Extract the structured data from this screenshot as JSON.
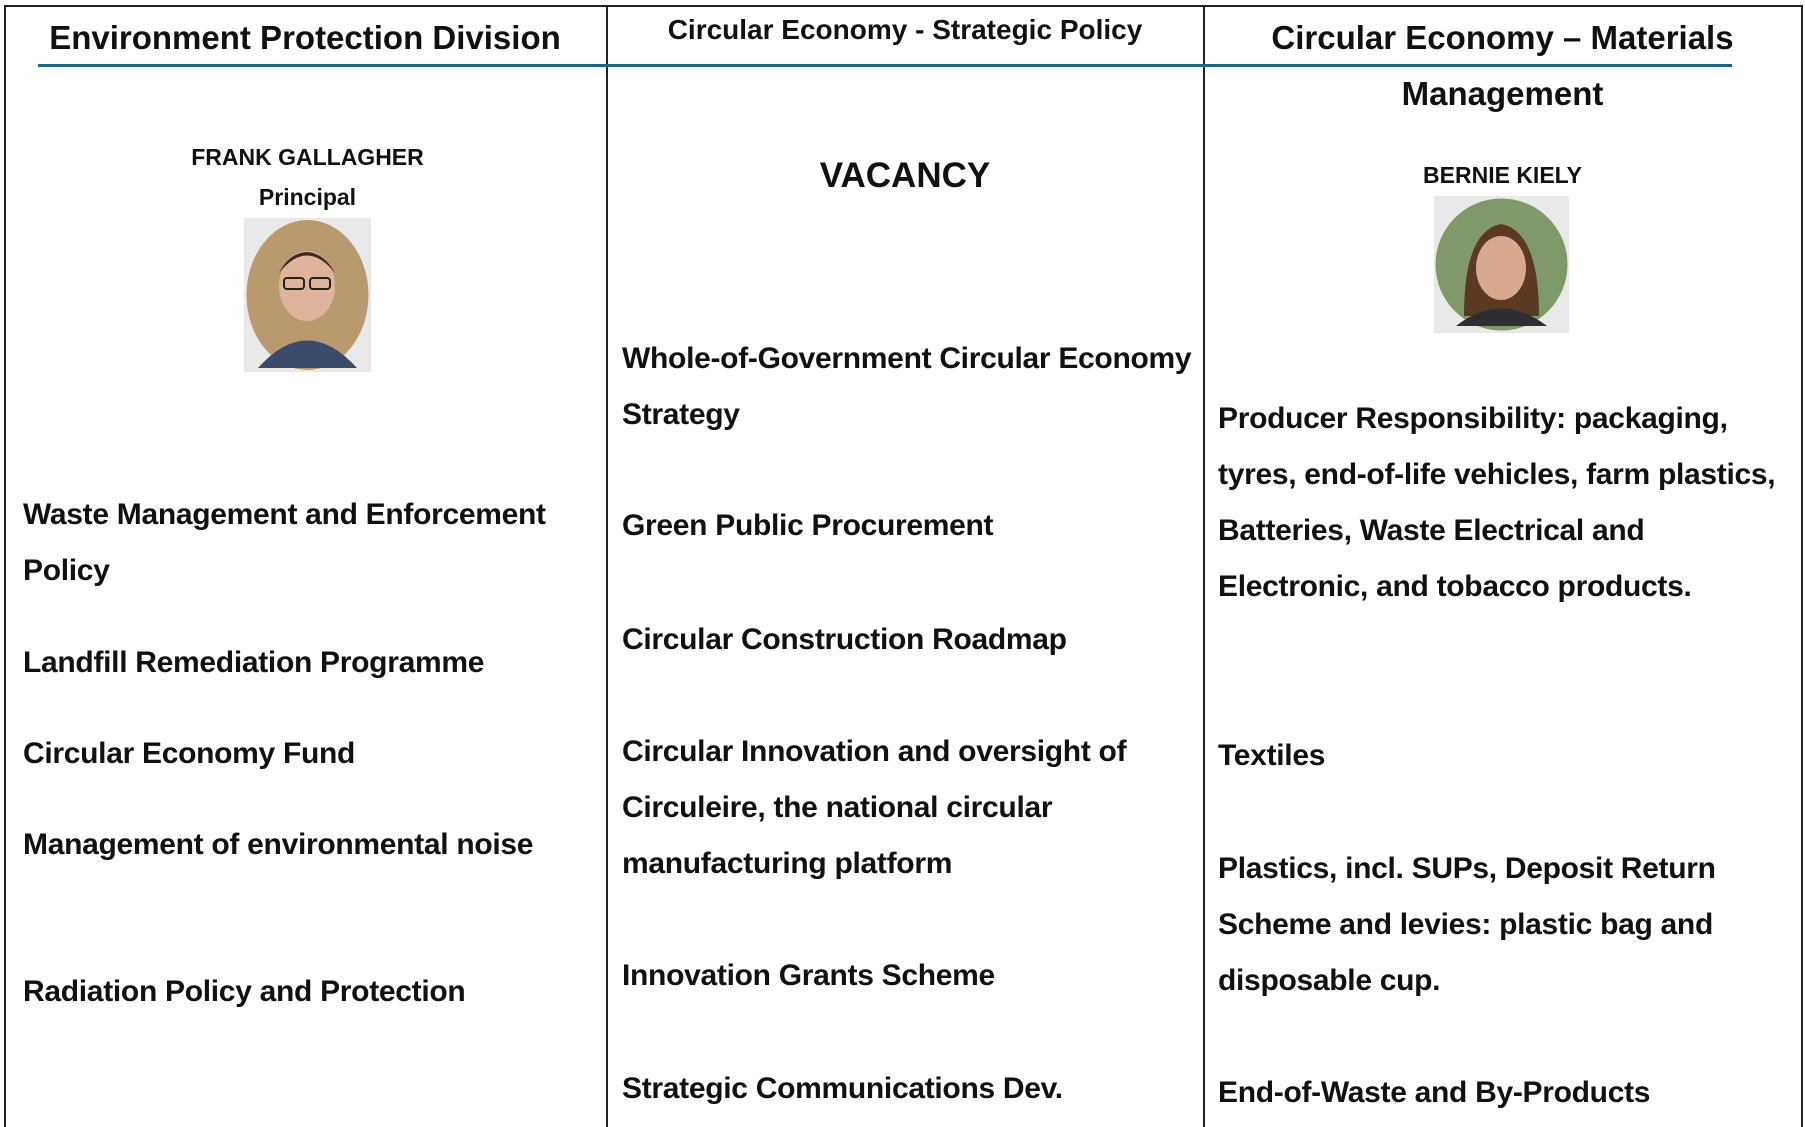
{
  "columns": [
    {
      "header": "Environment Protection Division",
      "name": "FRANK GALLAGHER",
      "role": "Principal",
      "items": [
        "Waste Management and Enforcement Policy",
        "Landfill Remediation Programme",
        "Circular Economy Fund",
        "Management of environmental noise",
        "Radiation Policy and Protection"
      ]
    },
    {
      "header": "Circular Economy - Strategic Policy",
      "name": "VACANCY",
      "items": [
        "Whole-of-Government Circular Economy Strategy",
        "Green Public Procurement",
        "Circular Construction Roadmap",
        "Circular Innovation and oversight of Circuleire, the national circular manufacturing platform",
        "Innovation Grants Scheme",
        "Strategic Communications Dev."
      ]
    },
    {
      "header": "Circular Economy – Materials Management",
      "name": "BERNIE KIELY",
      "items": [
        "Producer Responsibility: packaging, tyres, end-of-life vehicles, farm plastics, Batteries, Waste Electrical and Electronic, and tobacco products.",
        "Textiles",
        "Plastics, incl. SUPs, Deposit Return Scheme and levies: plastic bag and disposable cup.",
        "End-of-Waste and By-Products"
      ]
    }
  ]
}
